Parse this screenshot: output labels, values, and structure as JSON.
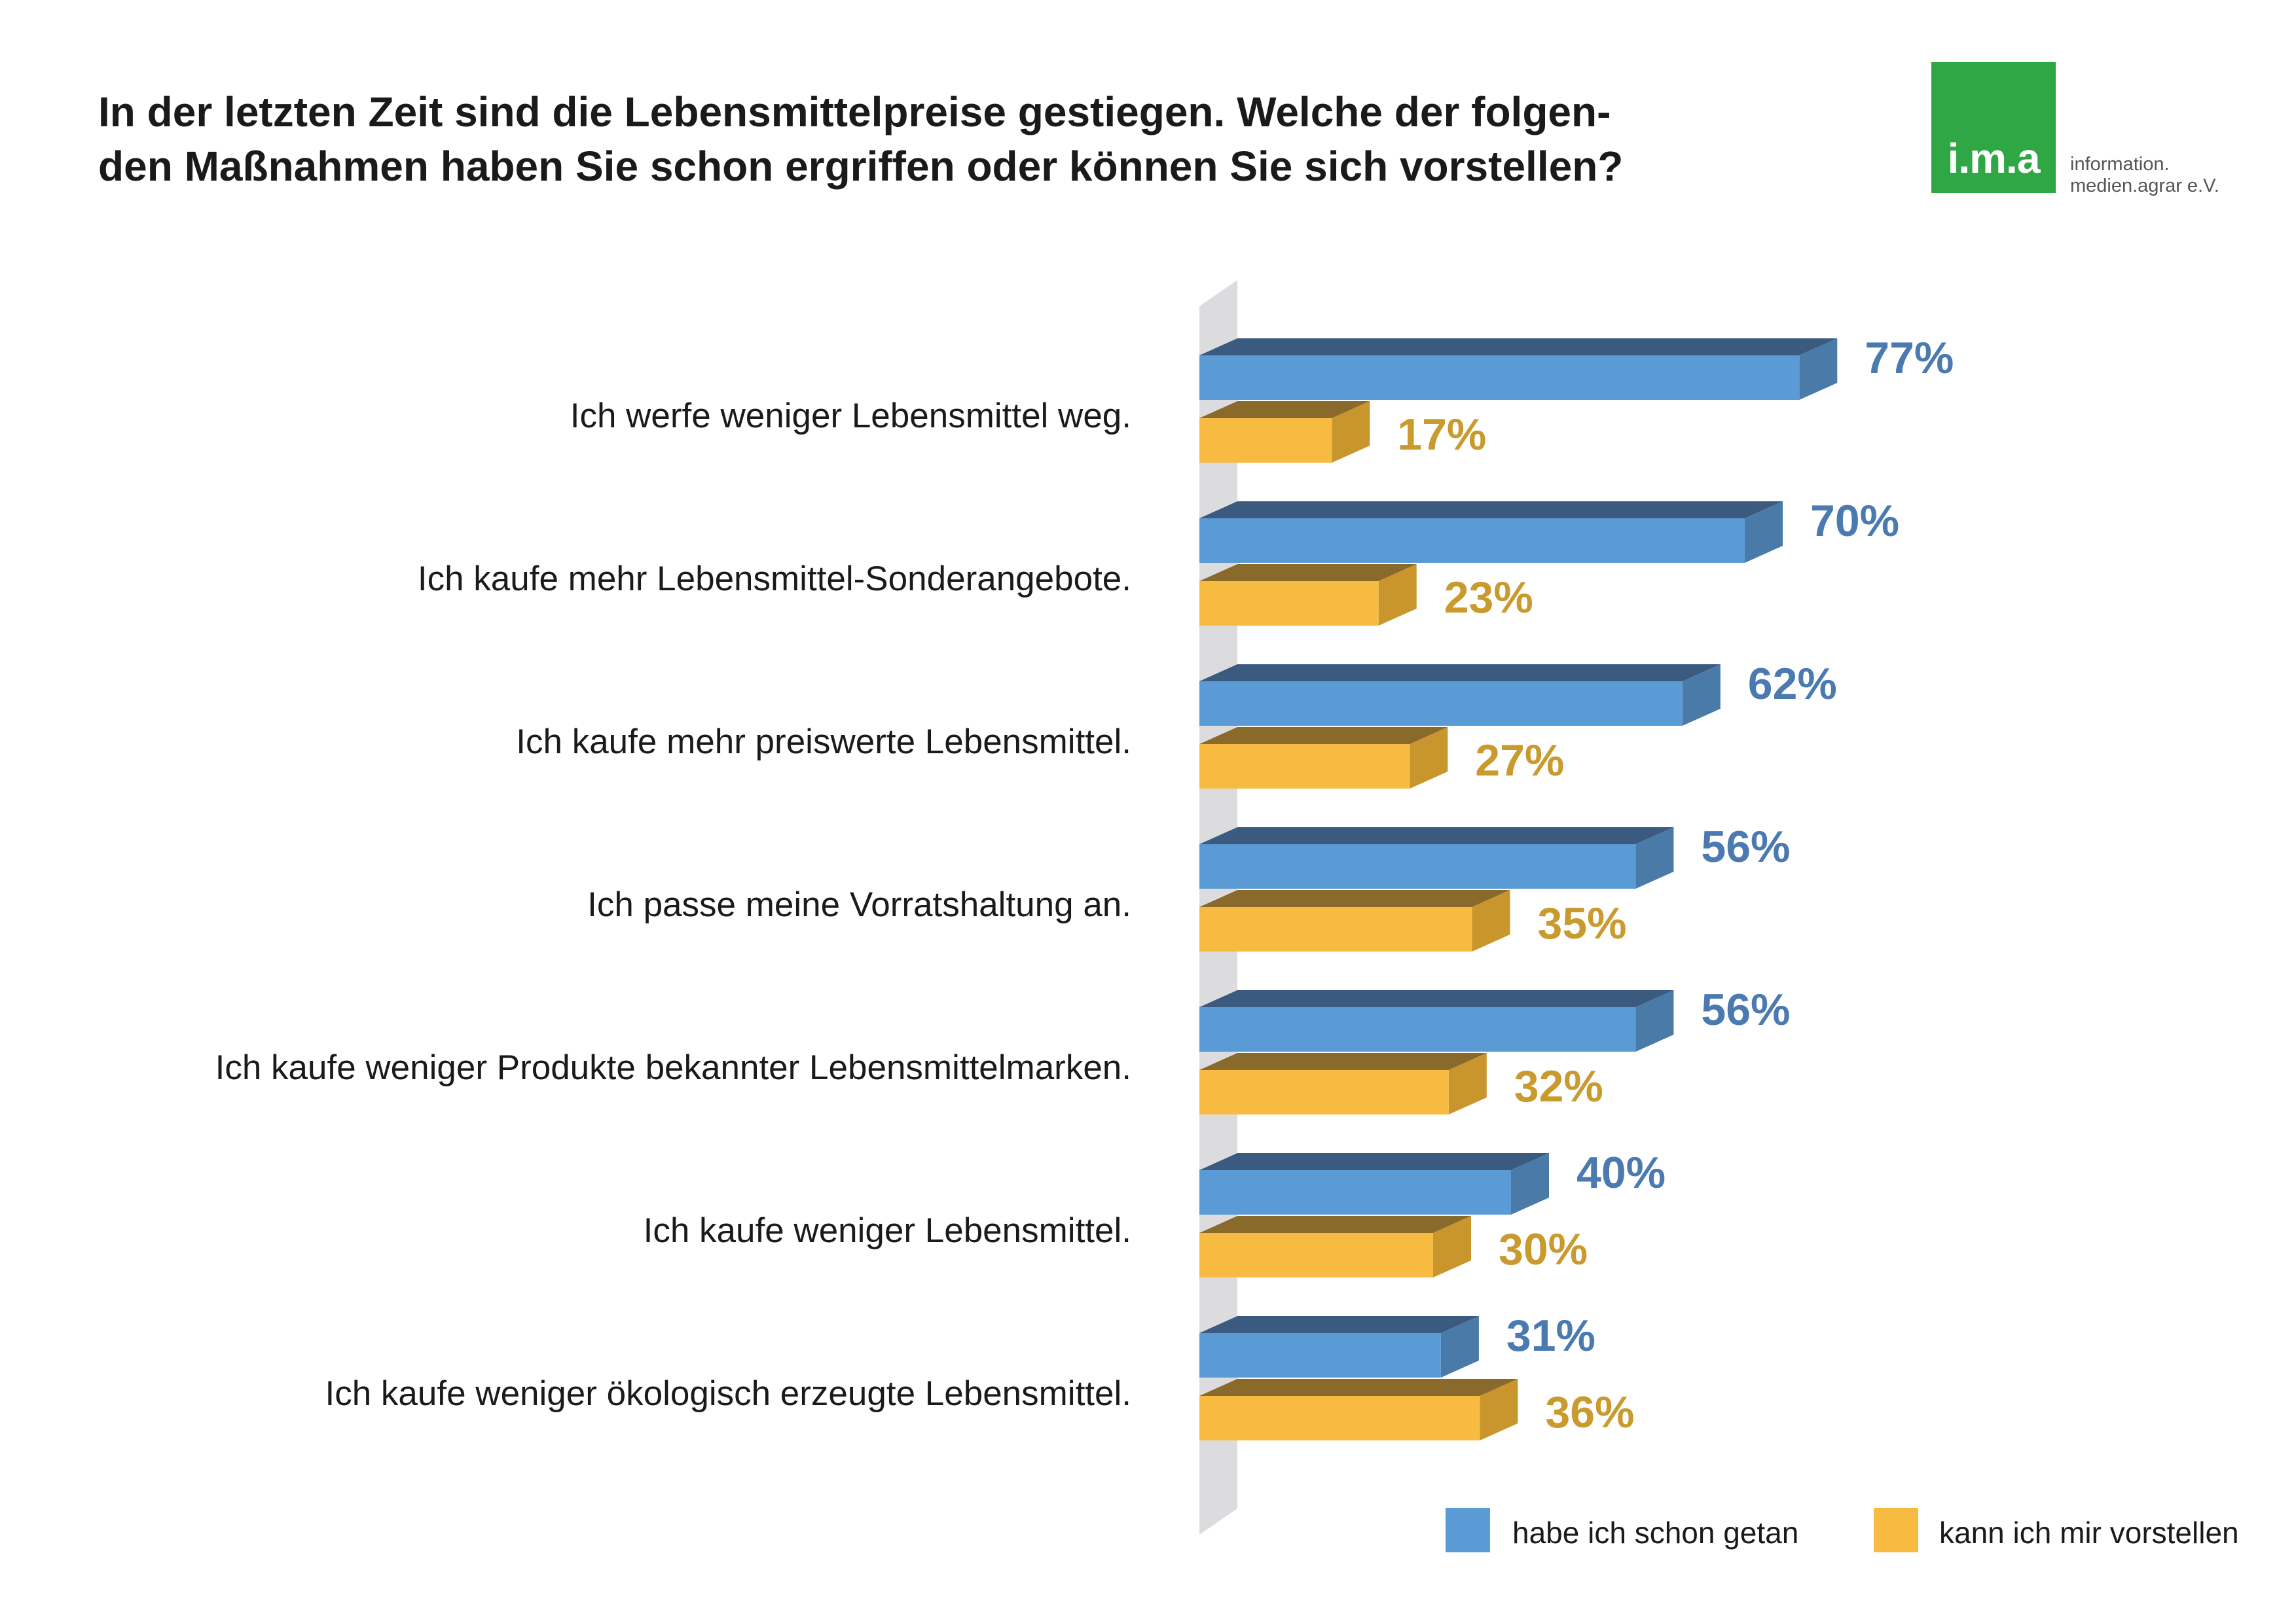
{
  "title": {
    "line1": "In der letzten Zeit sind die Lebensmittelpreise gestiegen. Welche der folgen-",
    "line2": "den Maßnahmen haben Sie schon ergriffen oder können Sie sich vorstellen?"
  },
  "logo": {
    "mark": "i.m.a",
    "line1": "information.",
    "line2": "medien.agrar e.V."
  },
  "colors": {
    "series1_front": "#5b9bd5",
    "series1_top": "#3a5a80",
    "series1_side": "#4a7aa8",
    "series1_label": "#4a7ab0",
    "series2_front": "#f7bb42",
    "series2_top": "#8a6a2a",
    "series2_side": "#c9962e",
    "series2_label": "#c99a2e",
    "axis_wall": "#dcdcdf"
  },
  "chart_data": {
    "type": "bar",
    "orientation": "horizontal",
    "style": "3d",
    "categories": [
      "Ich werfe weniger Lebensmittel weg.",
      "Ich kaufe mehr Lebensmittel-Sonderangebote.",
      "Ich kaufe mehr preiswerte Lebensmittel.",
      "Ich passe meine Vorratshaltung an.",
      "Ich kaufe weniger Produkte bekannter Lebensmittelmarken.",
      "Ich kaufe weniger Lebensmittel.",
      "Ich kaufe weniger ökologisch erzeugte Lebensmittel."
    ],
    "series": [
      {
        "name": "habe ich schon getan",
        "values": [
          77,
          70,
          62,
          56,
          56,
          40,
          31
        ],
        "labels": [
          "77%",
          "70%",
          "62%",
          "56%",
          "56%",
          "40%",
          "31%"
        ]
      },
      {
        "name": "kann ich mir vorstellen",
        "values": [
          17,
          23,
          27,
          35,
          32,
          30,
          36
        ],
        "labels": [
          "17%",
          "23%",
          "27%",
          "35%",
          "32%",
          "30%",
          "36%"
        ]
      }
    ],
    "xlim": [
      0,
      100
    ],
    "grid": false,
    "legend": "bottom-right"
  }
}
